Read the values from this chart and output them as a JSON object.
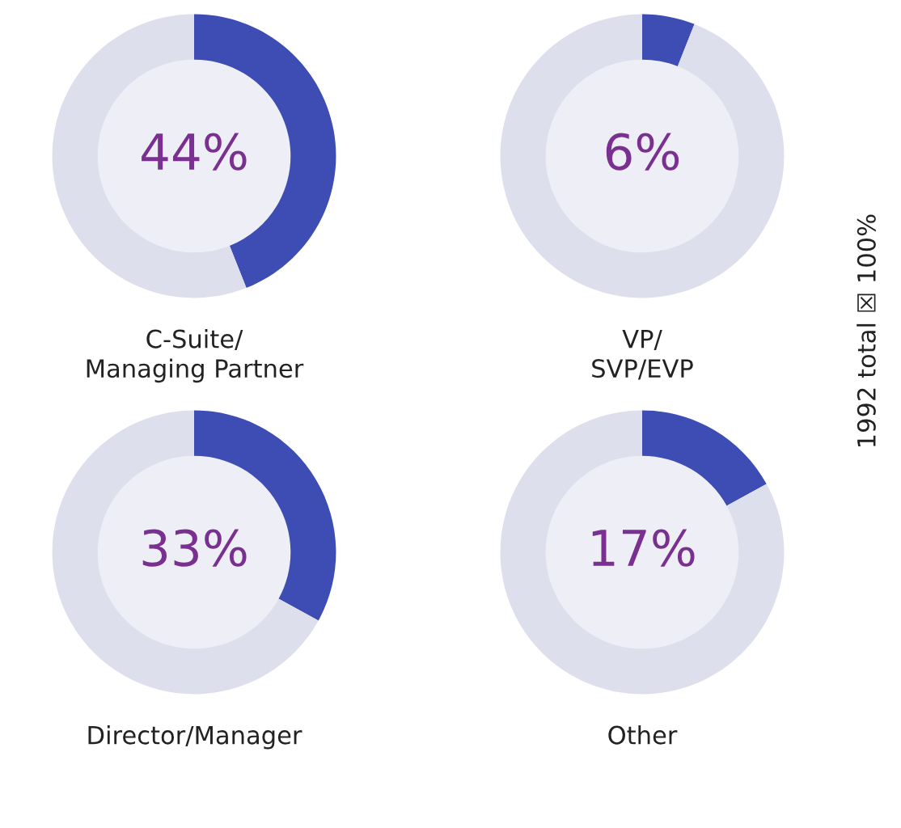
{
  "chart_data": [
    {
      "type": "donut",
      "title": "C-Suite/\nManaging Partner",
      "categories": [
        null,
        null
      ],
      "values": [
        44,
        56
      ],
      "colors": [
        "#3d4db3",
        "#dde0ec"
      ],
      "value_labels": [
        "44%",
        null
      ]
    },
    {
      "type": "donut",
      "title": "VP/\nSVP/EVP",
      "categories": [
        null,
        null
      ],
      "values": [
        6,
        94
      ],
      "colors": [
        "#3d4db3",
        "#dde0ec"
      ],
      "value_labels": [
        "6%",
        null
      ],
      "annotations": [
        "1992 total ☒ 100%"
      ]
    },
    {
      "type": "donut",
      "title": "Director/Manager",
      "categories": [
        null,
        null
      ],
      "values": [
        33,
        67
      ],
      "colors": [
        "#3d4db3",
        "#dde0ec"
      ],
      "value_labels": [
        "33%",
        null
      ]
    },
    {
      "type": "donut",
      "title": "Other",
      "categories": [
        null,
        null
      ],
      "values": [
        17,
        83
      ],
      "colors": [
        "#3d4db3",
        "#dde0ec"
      ],
      "value_labels": [
        "17%",
        null
      ]
    }
  ]
}
